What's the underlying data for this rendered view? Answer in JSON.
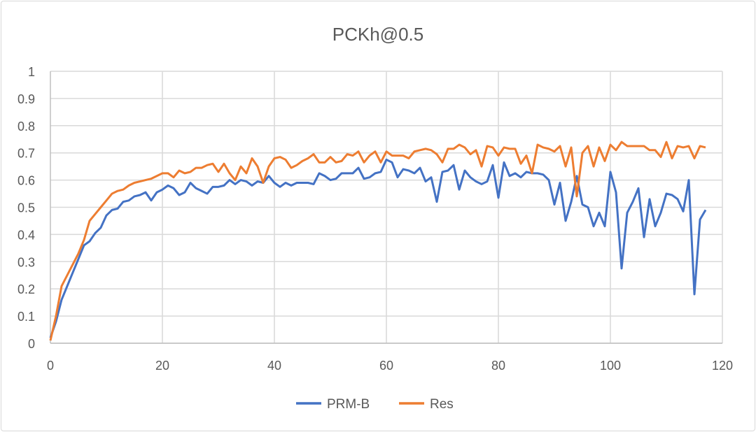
{
  "chart_data": {
    "type": "line",
    "title": "PCKh@0.5",
    "xlabel": "",
    "ylabel": "",
    "xlim": [
      0,
      120
    ],
    "ylim": [
      0,
      1
    ],
    "x_ticks": [
      "0",
      "20",
      "40",
      "60",
      "80",
      "100",
      "120"
    ],
    "y_ticks": [
      "0",
      "0.1",
      "0.2",
      "0.3",
      "0.4",
      "0.5",
      "0.6",
      "0.7",
      "0.8",
      "0.9",
      "1"
    ],
    "grid": true,
    "legend": "bottom",
    "series": [
      {
        "name": "PRM-B",
        "color": "#4472C4",
        "values": [
          0.02,
          0.08,
          0.16,
          0.21,
          0.26,
          0.31,
          0.36,
          0.375,
          0.405,
          0.425,
          0.47,
          0.49,
          0.495,
          0.52,
          0.525,
          0.54,
          0.545,
          0.555,
          0.525,
          0.555,
          0.565,
          0.58,
          0.57,
          0.545,
          0.555,
          0.59,
          0.57,
          0.56,
          0.55,
          0.575,
          0.575,
          0.58,
          0.6,
          0.585,
          0.6,
          0.595,
          0.58,
          0.595,
          0.59,
          0.615,
          0.59,
          0.575,
          0.59,
          0.58,
          0.59,
          0.59,
          0.59,
          0.585,
          0.625,
          0.615,
          0.6,
          0.605,
          0.625,
          0.625,
          0.625,
          0.645,
          0.605,
          0.61,
          0.625,
          0.63,
          0.675,
          0.665,
          0.61,
          0.64,
          0.635,
          0.625,
          0.645,
          0.595,
          0.61,
          0.52,
          0.63,
          0.635,
          0.655,
          0.565,
          0.635,
          0.61,
          0.595,
          0.585,
          0.595,
          0.655,
          0.535,
          0.665,
          0.615,
          0.625,
          0.61,
          0.63,
          0.625,
          0.625,
          0.62,
          0.6,
          0.51,
          0.59,
          0.45,
          0.52,
          0.615,
          0.51,
          0.5,
          0.43,
          0.48,
          0.43,
          0.63,
          0.555,
          0.275,
          0.48,
          0.52,
          0.57,
          0.39,
          0.53,
          0.43,
          0.48,
          0.55,
          0.545,
          0.53,
          0.485,
          0.6,
          0.18,
          0.455,
          0.49
        ]
      },
      {
        "name": "Res",
        "color": "#ED7D31",
        "values": [
          0.01,
          0.1,
          0.21,
          0.25,
          0.29,
          0.33,
          0.38,
          0.45,
          0.475,
          0.5,
          0.525,
          0.55,
          0.56,
          0.565,
          0.58,
          0.59,
          0.595,
          0.6,
          0.605,
          0.615,
          0.625,
          0.625,
          0.61,
          0.635,
          0.625,
          0.63,
          0.645,
          0.645,
          0.655,
          0.66,
          0.63,
          0.66,
          0.625,
          0.6,
          0.65,
          0.625,
          0.68,
          0.65,
          0.59,
          0.65,
          0.68,
          0.685,
          0.675,
          0.645,
          0.655,
          0.67,
          0.68,
          0.695,
          0.665,
          0.665,
          0.685,
          0.665,
          0.67,
          0.695,
          0.69,
          0.705,
          0.665,
          0.69,
          0.705,
          0.665,
          0.705,
          0.69,
          0.69,
          0.69,
          0.68,
          0.705,
          0.71,
          0.715,
          0.71,
          0.695,
          0.665,
          0.715,
          0.715,
          0.73,
          0.72,
          0.695,
          0.71,
          0.65,
          0.725,
          0.72,
          0.69,
          0.72,
          0.715,
          0.715,
          0.66,
          0.69,
          0.625,
          0.73,
          0.72,
          0.715,
          0.705,
          0.725,
          0.65,
          0.72,
          0.54,
          0.7,
          0.725,
          0.65,
          0.72,
          0.67,
          0.73,
          0.71,
          0.74,
          0.725,
          0.725,
          0.725,
          0.725,
          0.71,
          0.71,
          0.685,
          0.74,
          0.68,
          0.725,
          0.72,
          0.725,
          0.68,
          0.725,
          0.72
        ]
      }
    ]
  }
}
